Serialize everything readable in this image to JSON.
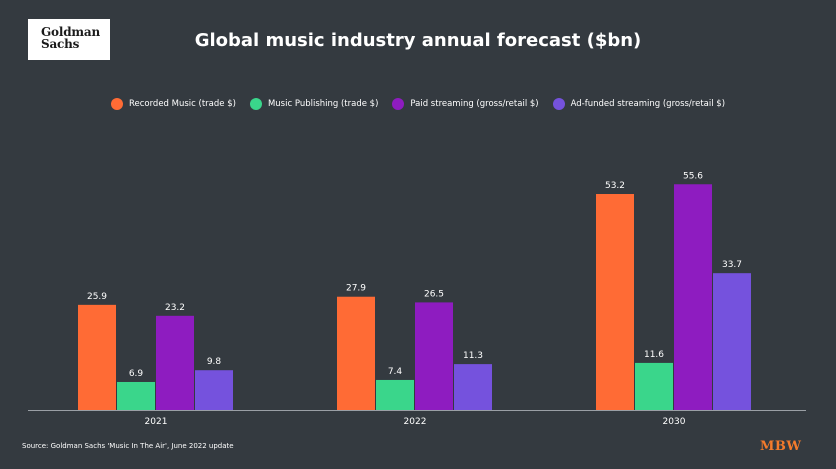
{
  "logo": {
    "line1": "Goldman",
    "line2": "Sachs"
  },
  "source_text": "Source: Goldman Sachs 'Music In The Air', June 2022 update",
  "brand_text": "MBW",
  "chart_data": {
    "type": "bar",
    "title": "Global music industry annual forecast ($bn)",
    "xlabel": "",
    "ylabel": "",
    "categories": [
      "2021",
      "2022",
      "2030"
    ],
    "ylim": [
      0,
      60
    ],
    "grid": false,
    "legend_position": "top",
    "series": [
      {
        "name": "Recorded Music (trade $)",
        "color": "#ff6b35",
        "values": [
          25.9,
          27.9,
          53.2
        ],
        "labels": [
          "25.9",
          "27.9",
          "53.2"
        ]
      },
      {
        "name": "Music Publishing (trade $)",
        "color": "#3ad68b",
        "values": [
          6.9,
          7.4,
          11.6
        ],
        "labels": [
          "6.9",
          "7.4",
          "11.6"
        ]
      },
      {
        "name": "Paid streaming (gross/retail $)",
        "color": "#8e1cc0",
        "values": [
          23.2,
          26.5,
          55.6
        ],
        "labels": [
          "23.2",
          "26.5",
          "55.6"
        ]
      },
      {
        "name": "Ad-funded streaming (gross/retail $)",
        "color": "#7552dd",
        "values": [
          9.8,
          11.3,
          33.7
        ],
        "labels": [
          "9.8",
          "11.3",
          "33.7"
        ]
      }
    ]
  }
}
